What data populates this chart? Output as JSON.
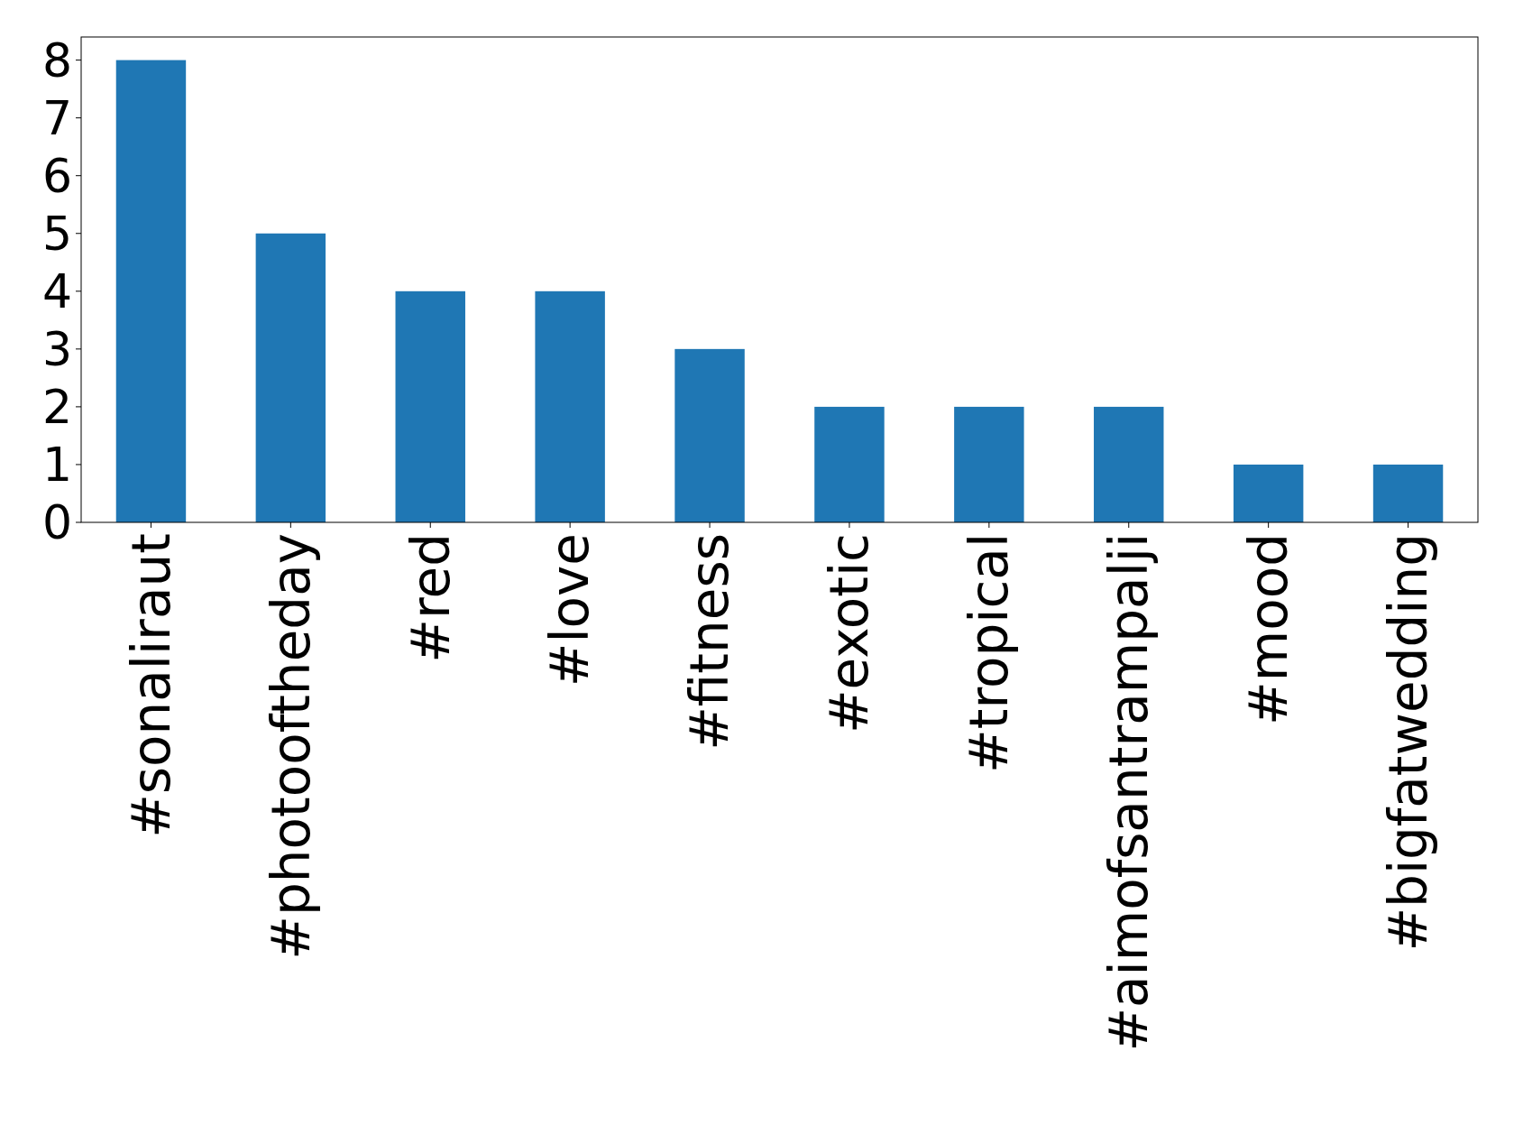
{
  "chart_data": {
    "type": "bar",
    "categories": [
      "#sonaliraut",
      "#photooftheday",
      "#red",
      "#love",
      "#fitness",
      "#exotic",
      "#tropical",
      "#aimofsantrampalji",
      "#mood",
      "#bigfatwedding"
    ],
    "values": [
      8,
      5,
      4,
      4,
      3,
      2,
      2,
      2,
      1,
      1
    ],
    "color": "#1f77b4",
    "ylim": [
      0,
      8.4
    ],
    "yticks": [
      0,
      1,
      2,
      3,
      4,
      5,
      6,
      7,
      8
    ],
    "grid": false
  }
}
